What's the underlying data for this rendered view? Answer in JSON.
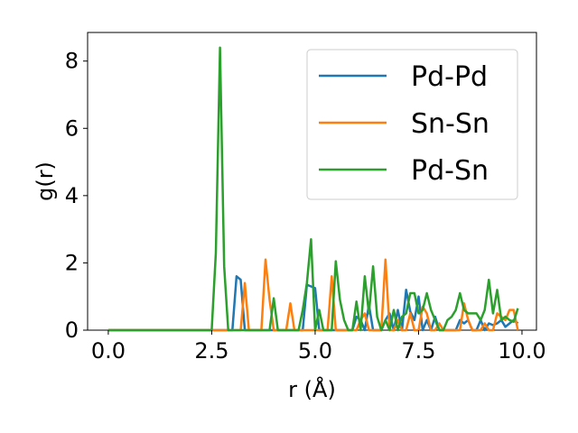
{
  "chart_data": {
    "type": "line",
    "title": "",
    "xlabel": "r (Å)",
    "ylabel": "g(r)",
    "xlim": [
      -0.5,
      10.35
    ],
    "ylim": [
      0,
      8.85
    ],
    "xticks": [
      "0.0",
      "2.5",
      "5.0",
      "7.5",
      "10.0"
    ],
    "yticks": [
      "0",
      "2",
      "4",
      "6",
      "8"
    ],
    "legend_position": "top-right",
    "grid": false,
    "x": [
      0.0,
      0.1,
      0.2,
      0.3,
      0.4,
      0.5,
      0.6,
      0.7,
      0.8,
      0.9,
      1.0,
      1.1,
      1.2,
      1.3,
      1.4,
      1.5,
      1.6,
      1.7,
      1.8,
      1.9,
      2.0,
      2.1,
      2.2,
      2.3,
      2.4,
      2.5,
      2.6,
      2.7,
      2.8,
      2.9,
      3.0,
      3.1,
      3.2,
      3.3,
      3.4,
      3.5,
      3.6,
      3.7,
      3.8,
      3.9,
      4.0,
      4.1,
      4.2,
      4.3,
      4.4,
      4.5,
      4.6,
      4.7,
      4.8,
      4.9,
      5.0,
      5.1,
      5.2,
      5.3,
      5.4,
      5.5,
      5.6,
      5.7,
      5.8,
      5.9,
      6.0,
      6.1,
      6.2,
      6.3,
      6.4,
      6.5,
      6.6,
      6.7,
      6.8,
      6.9,
      7.0,
      7.1,
      7.2,
      7.3,
      7.4,
      7.5,
      7.6,
      7.7,
      7.8,
      7.9,
      8.0,
      8.1,
      8.2,
      8.3,
      8.4,
      8.5,
      8.6,
      8.7,
      8.8,
      8.9,
      9.0,
      9.1,
      9.2,
      9.3,
      9.4,
      9.5,
      9.6,
      9.7,
      9.8,
      9.9
    ],
    "series": [
      {
        "name": "Pd-Pd",
        "color": "#1f77b4",
        "values": [
          0,
          0,
          0,
          0,
          0,
          0,
          0,
          0,
          0,
          0,
          0,
          0,
          0,
          0,
          0,
          0,
          0,
          0,
          0,
          0,
          0,
          0,
          0,
          0,
          0,
          0,
          0,
          0,
          0,
          0,
          0,
          1.6,
          1.5,
          0,
          0,
          0,
          0,
          0,
          0,
          0,
          0,
          0,
          0,
          0,
          0,
          0,
          0,
          0,
          1.35,
          1.3,
          1.25,
          0,
          0,
          0,
          0,
          0,
          0,
          0,
          0,
          0,
          0.4,
          0.3,
          0,
          0.75,
          0,
          0,
          0,
          0.3,
          0.5,
          0,
          0.6,
          0,
          1.2,
          0.55,
          0.3,
          1.0,
          0,
          0.3,
          0,
          0.4,
          0,
          0,
          0,
          0,
          0,
          0.3,
          0.2,
          0.3,
          0,
          0,
          0.3,
          0,
          0.2,
          0.15,
          0.2,
          0.3,
          0.1,
          0.2,
          0.3,
          0.2
        ]
      },
      {
        "name": "Sn-Sn",
        "color": "#ff7f0e",
        "values": [
          0,
          0,
          0,
          0,
          0,
          0,
          0,
          0,
          0,
          0,
          0,
          0,
          0,
          0,
          0,
          0,
          0,
          0,
          0,
          0,
          0,
          0,
          0,
          0,
          0,
          0,
          0,
          0,
          0,
          0,
          0,
          0,
          0,
          1.4,
          0,
          0,
          0,
          0,
          2.1,
          0.9,
          0,
          0,
          0,
          0,
          0.8,
          0,
          0,
          0,
          0,
          0,
          0,
          0,
          0,
          0,
          1.6,
          0,
          0,
          0,
          0,
          0,
          0,
          0.3,
          0.5,
          0,
          0,
          0,
          0,
          2.1,
          0,
          0,
          0.3,
          0,
          0,
          0.5,
          0,
          0,
          0.7,
          0.5,
          0,
          0,
          0.2,
          0,
          0,
          0,
          0,
          0,
          0.8,
          0.3,
          0,
          0,
          0,
          0.2,
          0,
          0,
          0.5,
          0.4,
          0.3,
          0.6,
          0.6,
          0
        ]
      },
      {
        "name": "Pd-Sn",
        "color": "#2ca02c",
        "values": [
          0,
          0,
          0,
          0,
          0,
          0,
          0,
          0,
          0,
          0,
          0,
          0,
          0,
          0,
          0,
          0,
          0,
          0,
          0,
          0,
          0,
          0,
          0,
          0,
          0,
          0,
          2.3,
          8.4,
          1.9,
          0,
          0,
          0,
          0,
          0,
          0,
          0,
          0,
          0,
          0,
          0,
          0.95,
          0,
          0,
          0,
          0,
          0,
          0,
          0.6,
          1.4,
          2.7,
          0,
          0.6,
          0,
          0,
          0,
          2.05,
          0.9,
          0.3,
          0,
          0,
          0.85,
          0,
          1.6,
          0.5,
          1.9,
          0.4,
          0,
          0.3,
          0,
          0.6,
          0,
          0.4,
          0.5,
          1.1,
          1.1,
          0.5,
          0.6,
          1.1,
          0.6,
          0.3,
          0,
          0,
          0.3,
          0.4,
          0.6,
          1.1,
          0.6,
          0.5,
          0.5,
          0.5,
          0.3,
          0.6,
          1.5,
          0.5,
          1.2,
          0.3,
          0.4,
          0.3,
          0.25,
          0.65
        ]
      }
    ]
  }
}
